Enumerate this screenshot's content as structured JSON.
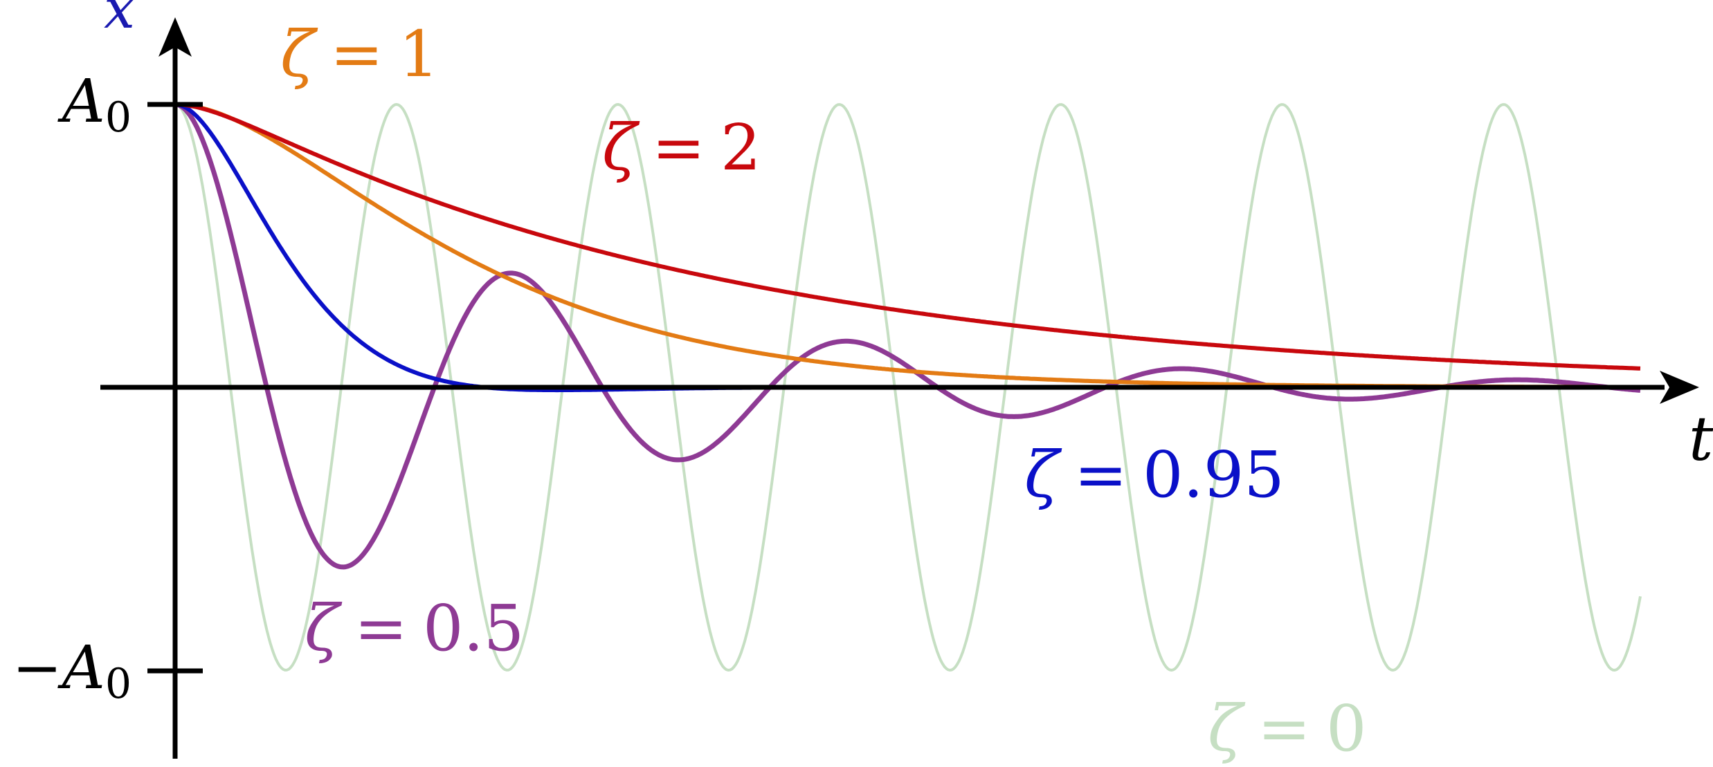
{
  "chart_data": {
    "type": "line",
    "title": "",
    "xlabel": "t",
    "ylabel": "x",
    "x_range": [
      0,
      6.6
    ],
    "y_range": [
      -1.3,
      1.35
    ],
    "y_ticks": [
      {
        "value": 1,
        "label": "A",
        "sub": "0",
        "sign": ""
      },
      {
        "value": -1,
        "label": "A",
        "sub": "0",
        "sign": "−"
      }
    ],
    "omega": 6.3,
    "series": [
      {
        "name": "ζ = 0",
        "zeta": 0,
        "color": "#c6dfc3",
        "width": 4
      },
      {
        "name": "ζ = 0.5",
        "zeta": 0.5,
        "color": "#8e3a94",
        "width": 7
      },
      {
        "name": "ζ = 0.95",
        "zeta": 0.95,
        "color": "#0a10c8",
        "width": 6
      },
      {
        "name": "ζ = 1",
        "zeta": 1,
        "color": "#e37b14",
        "width": 6
      },
      {
        "name": "ζ = 2",
        "zeta": 2,
        "color": "#c8080d",
        "width": 6
      }
    ],
    "labels": [
      {
        "series": "ζ = 1",
        "symbol": "ζ",
        "eq": "=",
        "value": "1",
        "color": "#e37b14"
      },
      {
        "series": "ζ = 2",
        "symbol": "ζ",
        "eq": "=",
        "value": "2",
        "color": "#c8080d"
      },
      {
        "series": "ζ = 0.95",
        "symbol": "ζ",
        "eq": "=",
        "value": "0.95",
        "color": "#0a10c8"
      },
      {
        "series": "ζ = 0.5",
        "symbol": "ζ",
        "eq": "=",
        "value": "0.5",
        "color": "#8e3a94"
      },
      {
        "series": "ζ = 0",
        "symbol": "ζ",
        "eq": "=",
        "value": "0",
        "color": "#c6dfc3"
      }
    ],
    "axis_color": "#000000",
    "ylabel_color": "#1a1ab0",
    "grid": false,
    "legend": "none"
  }
}
